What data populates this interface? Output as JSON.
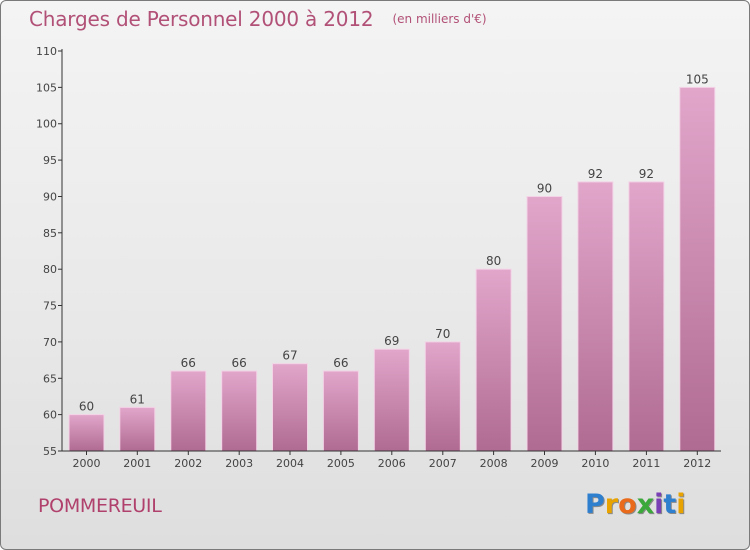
{
  "chart_title": "Charges de Personnel 2000 à 2012",
  "chart_unit": "(en milliers d'€)",
  "commune": "POMMEREUIL",
  "brand": {
    "text": "Proxiti",
    "letters": [
      {
        "char": "P",
        "color": "#2f7fcf"
      },
      {
        "char": "r",
        "color": "#e8a300"
      },
      {
        "char": "o",
        "color": "#e86a1a"
      },
      {
        "char": "x",
        "color": "#3aa83a"
      },
      {
        "char": "i",
        "color": "#7a3fb5"
      },
      {
        "char": "t",
        "color": "#2f7fcf"
      },
      {
        "char": "i",
        "color": "#e8a300"
      }
    ]
  },
  "colors": {
    "bar_top": "#e2a6cb",
    "bar_bottom": "#b06b92",
    "axis": "#333333"
  },
  "chart_data": {
    "type": "bar",
    "title": "Charges de Personnel 2000 à 2012",
    "subtitle": "(en milliers d'€)",
    "xlabel": "",
    "ylabel": "",
    "categories": [
      "2000",
      "2001",
      "2002",
      "2003",
      "2004",
      "2005",
      "2006",
      "2007",
      "2008",
      "2009",
      "2010",
      "2011",
      "2012"
    ],
    "values": [
      60,
      61,
      66,
      66,
      67,
      66,
      69,
      70,
      80,
      90,
      92,
      92,
      105
    ],
    "ylim": [
      55,
      110
    ],
    "yticks": [
      55,
      60,
      65,
      70,
      75,
      80,
      85,
      90,
      95,
      100,
      105,
      110
    ],
    "grid": false,
    "legend": "none"
  }
}
